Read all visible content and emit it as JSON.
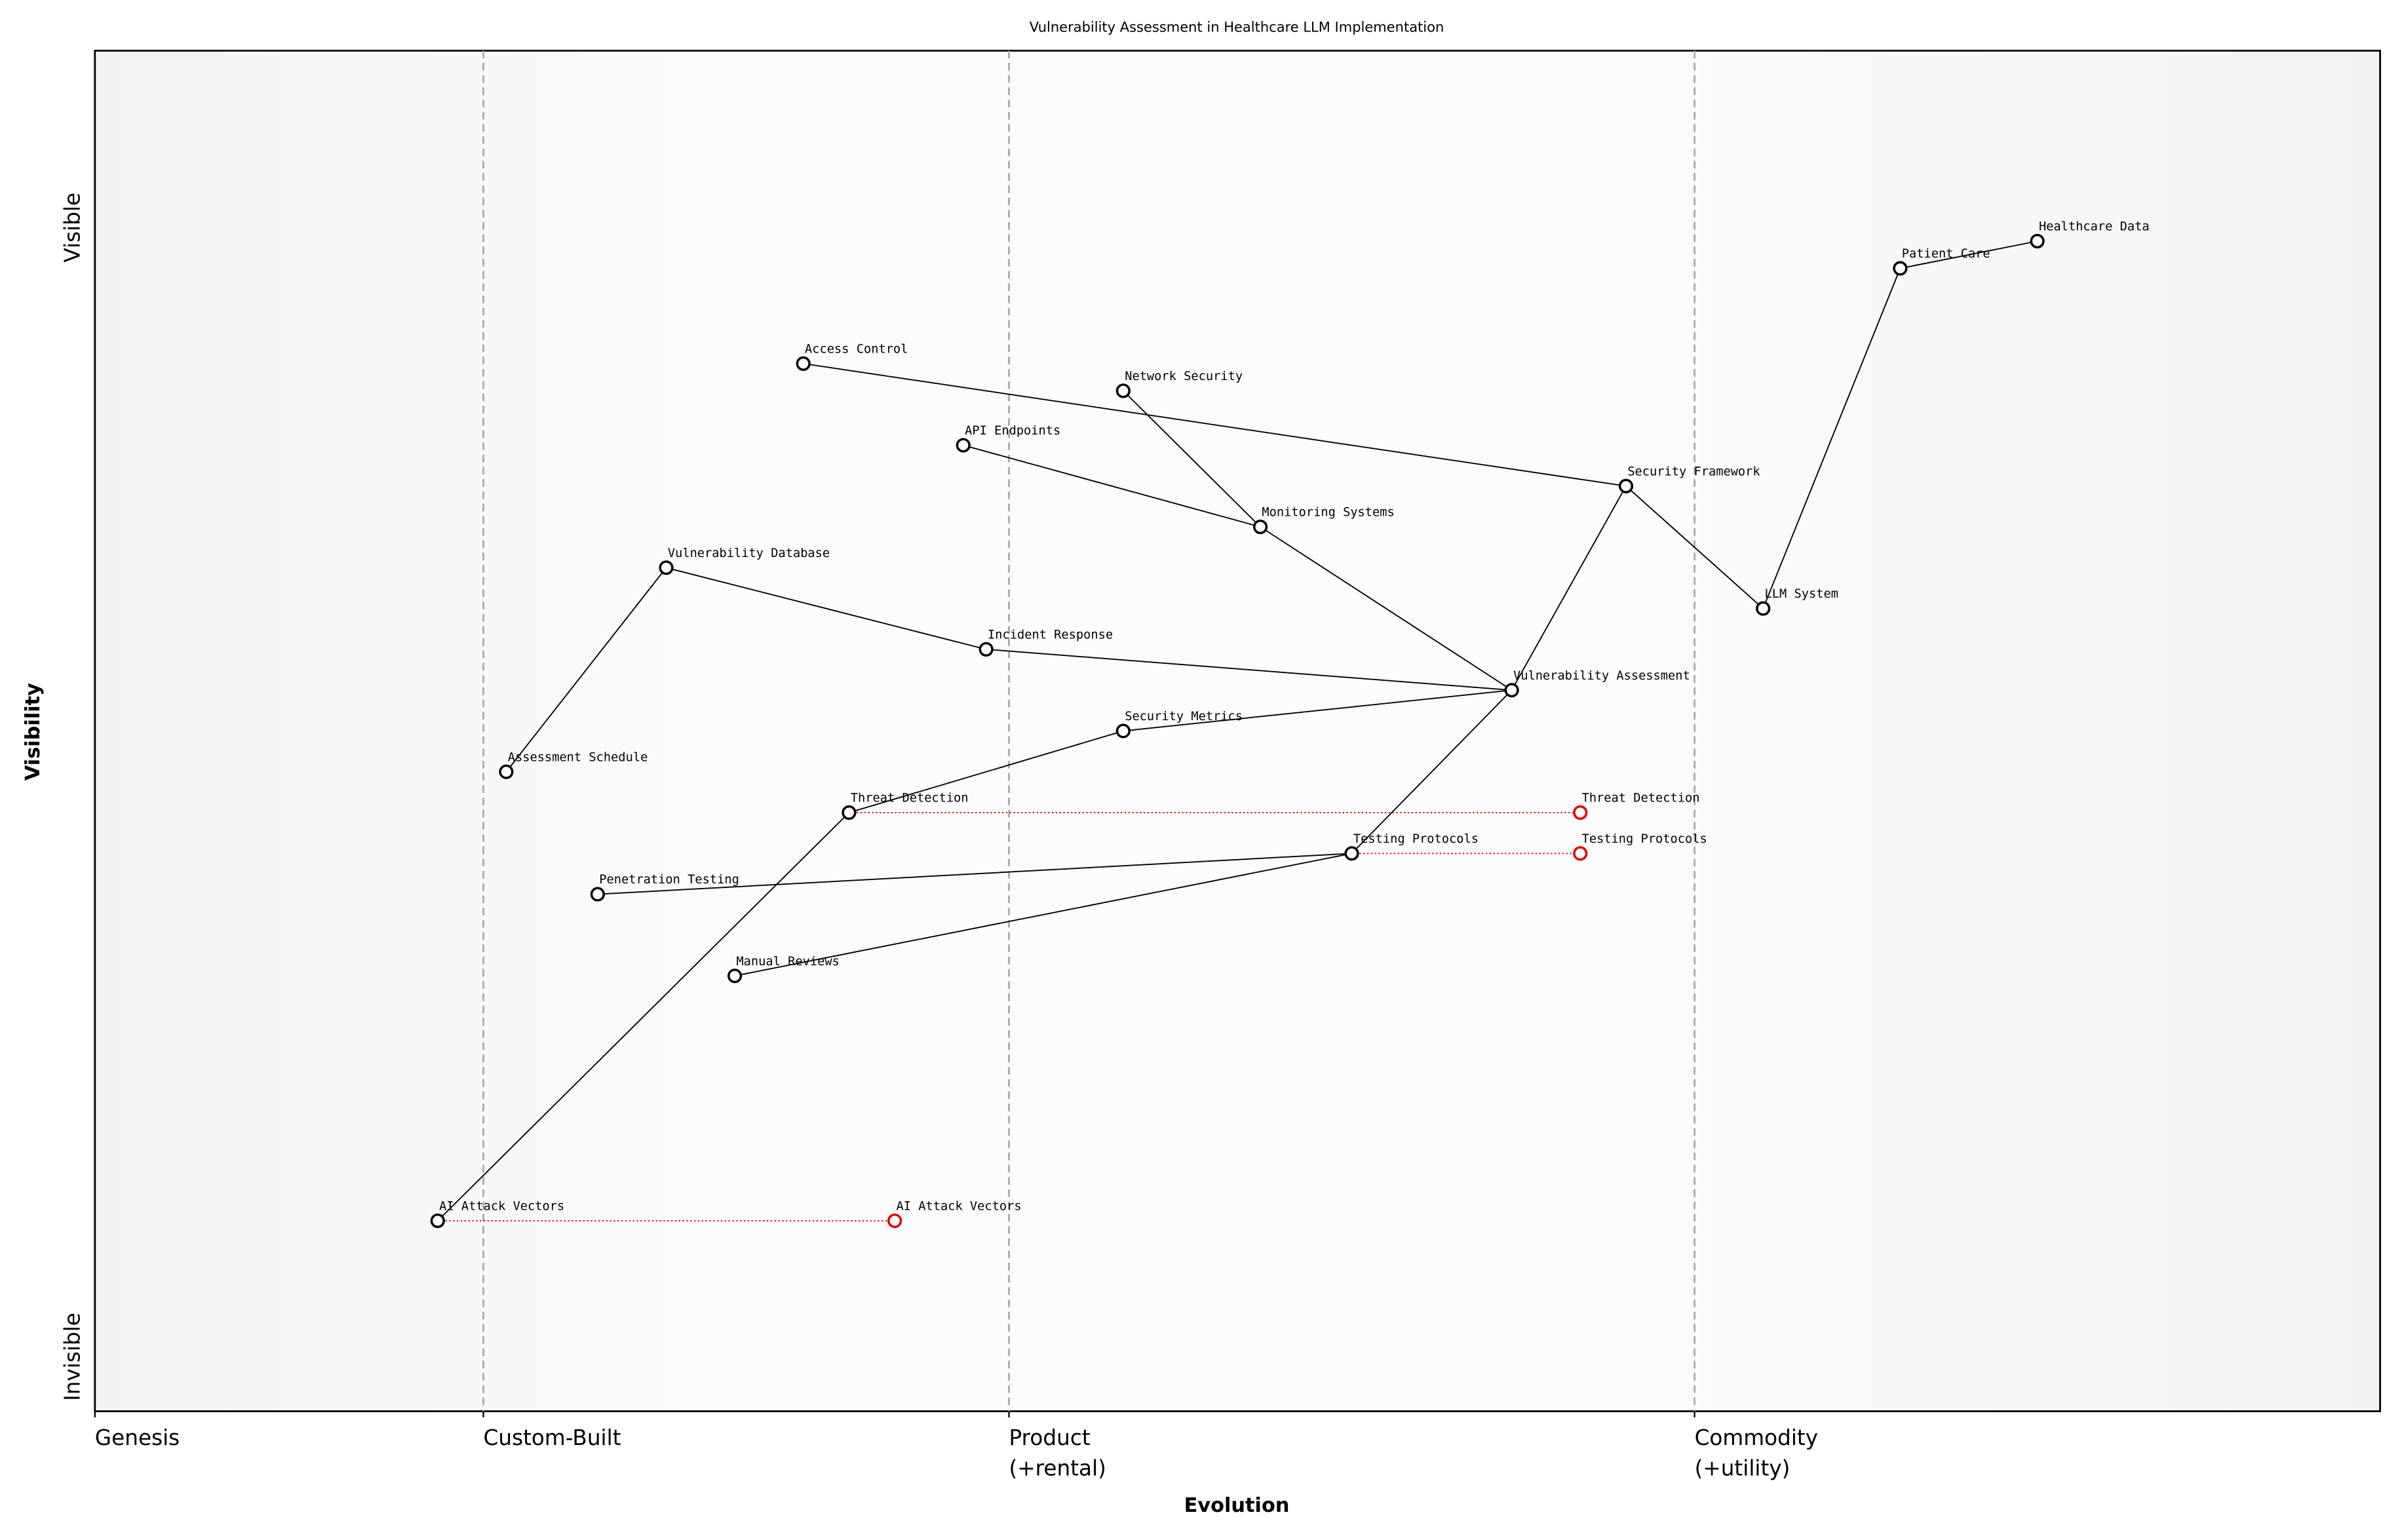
{
  "chart_data": {
    "type": "wardley",
    "title": "Vulnerability Assessment in Healthcare LLM Implementation",
    "x_label": "Evolution",
    "y_label": "Visibility",
    "xlim": [
      0,
      1
    ],
    "ylim": [
      0,
      1
    ],
    "xticks": [
      {
        "value": 0,
        "label": "Genesis"
      },
      {
        "value": 0.17,
        "label": "Custom-Built"
      },
      {
        "value": 0.4,
        "label": "Product\n(+rental)"
      },
      {
        "value": 0.7,
        "label": "Commodity\n(+utility)"
      }
    ],
    "yticks": [
      {
        "value": 0.04,
        "label": "Invisible"
      },
      {
        "value": 0.87,
        "label": "Visible"
      }
    ],
    "components": [
      {
        "name": "Healthcare Data",
        "x": 0.85,
        "y": 0.86
      },
      {
        "name": "Patient Care",
        "x": 0.79,
        "y": 0.84
      },
      {
        "name": "Access Control",
        "x": 0.31,
        "y": 0.77
      },
      {
        "name": "Network Security",
        "x": 0.45,
        "y": 0.75
      },
      {
        "name": "API Endpoints",
        "x": 0.38,
        "y": 0.71
      },
      {
        "name": "Security Framework",
        "x": 0.67,
        "y": 0.68
      },
      {
        "name": "Monitoring Systems",
        "x": 0.51,
        "y": 0.65
      },
      {
        "name": "Vulnerability Database",
        "x": 0.25,
        "y": 0.62
      },
      {
        "name": "LLM System",
        "x": 0.73,
        "y": 0.59
      },
      {
        "name": "Incident Response",
        "x": 0.39,
        "y": 0.56
      },
      {
        "name": "Vulnerability Assessment",
        "x": 0.62,
        "y": 0.53
      },
      {
        "name": "Security Metrics",
        "x": 0.45,
        "y": 0.5
      },
      {
        "name": "Assessment Schedule",
        "x": 0.18,
        "y": 0.47
      },
      {
        "name": "Threat Detection",
        "x": 0.33,
        "y": 0.44
      },
      {
        "name": "Testing Protocols",
        "x": 0.55,
        "y": 0.41
      },
      {
        "name": "Penetration Testing",
        "x": 0.22,
        "y": 0.38
      },
      {
        "name": "Manual Reviews",
        "x": 0.28,
        "y": 0.32
      },
      {
        "name": "AI Attack Vectors",
        "x": 0.15,
        "y": 0.14
      }
    ],
    "links": [
      [
        "Healthcare Data",
        "Patient Care"
      ],
      [
        "Patient Care",
        "LLM System"
      ],
      [
        "LLM System",
        "Security Framework"
      ],
      [
        "Security Framework",
        "Access Control"
      ],
      [
        "Security Framework",
        "Vulnerability Assessment"
      ],
      [
        "Network Security",
        "Monitoring Systems"
      ],
      [
        "API Endpoints",
        "Monitoring Systems"
      ],
      [
        "Monitoring Systems",
        "Vulnerability Assessment"
      ],
      [
        "Vulnerability Assessment",
        "Incident Response"
      ],
      [
        "Incident Response",
        "Vulnerability Database"
      ],
      [
        "Vulnerability Database",
        "Assessment Schedule"
      ],
      [
        "Vulnerability Assessment",
        "Security Metrics"
      ],
      [
        "Security Metrics",
        "Threat Detection"
      ],
      [
        "Threat Detection",
        "AI Attack Vectors"
      ],
      [
        "Vulnerability Assessment",
        "Testing Protocols"
      ],
      [
        "Testing Protocols",
        "Penetration Testing"
      ],
      [
        "Testing Protocols",
        "Manual Reviews"
      ]
    ],
    "evolve": [
      {
        "name": "Threat Detection",
        "x": 0.65,
        "color": "#e00000"
      },
      {
        "name": "Testing Protocols",
        "x": 0.65,
        "color": "#e00000"
      },
      {
        "name": "AI Attack Vectors",
        "x": 0.35,
        "color": "#e00000"
      }
    ]
  }
}
